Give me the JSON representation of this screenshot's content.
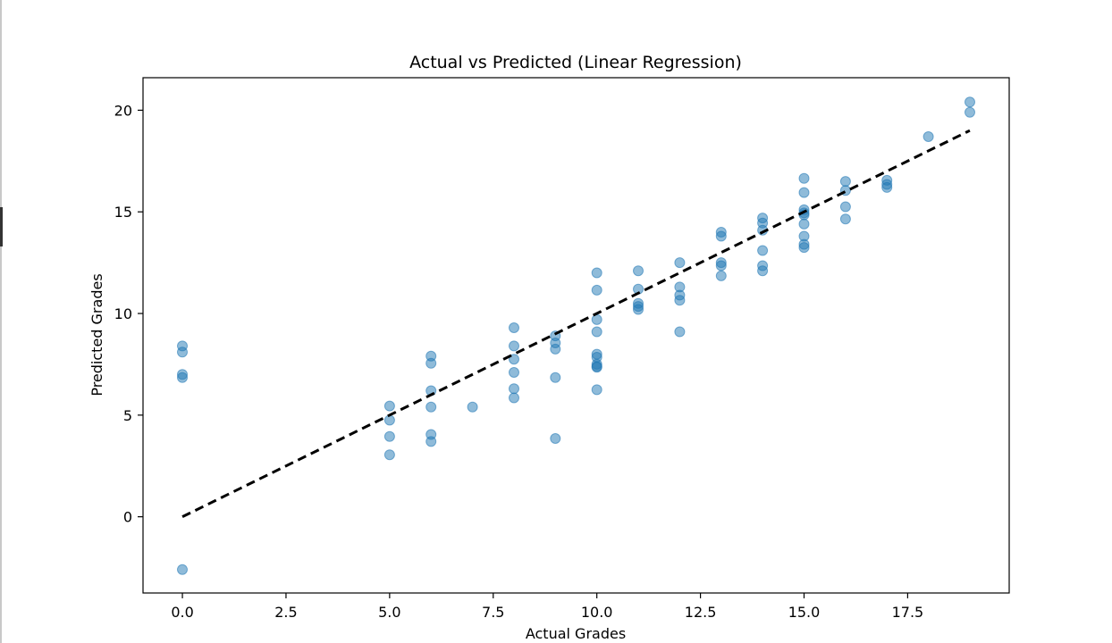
{
  "chart_data": {
    "type": "scatter",
    "title": "Actual vs Predicted (Linear Regression)",
    "xlabel": "Actual Grades",
    "ylabel": "Predicted Grades",
    "xlim": [
      -0.95,
      19.95
    ],
    "ylim": [
      -3.75,
      21.6
    ],
    "xticks": [
      0.0,
      2.5,
      5.0,
      7.5,
      10.0,
      12.5,
      15.0,
      17.5
    ],
    "xtick_labels": [
      "0.0",
      "2.5",
      "5.0",
      "7.5",
      "10.0",
      "12.5",
      "15.0",
      "17.5"
    ],
    "yticks": [
      0,
      5,
      10,
      15,
      20
    ],
    "ytick_labels": [
      "0",
      "5",
      "10",
      "15",
      "20"
    ],
    "grid": false,
    "point_color": "#1f77b4",
    "line_color": "#000000",
    "reference_line": {
      "x": [
        0,
        19
      ],
      "y": [
        0,
        19
      ],
      "style": "dashed"
    },
    "points": {
      "x": [
        0,
        0,
        0,
        0,
        0,
        5,
        5,
        5,
        5,
        6,
        6,
        6,
        6,
        6,
        6,
        7,
        8,
        8,
        8,
        8,
        8,
        8,
        9,
        9,
        9,
        9,
        9,
        10,
        10,
        10,
        10,
        10,
        10,
        10,
        10,
        10,
        10,
        11,
        11,
        11,
        11,
        11,
        12,
        12,
        12,
        12,
        12,
        13,
        13,
        13,
        13,
        13,
        14,
        14,
        14,
        14,
        14,
        14,
        15,
        15,
        15,
        15,
        15,
        15,
        15,
        15,
        15,
        16,
        16,
        16,
        16,
        17,
        17,
        17,
        18,
        19,
        19
      ],
      "y": [
        8.4,
        8.1,
        7.0,
        6.85,
        -2.6,
        5.45,
        4.75,
        3.95,
        3.05,
        7.9,
        7.55,
        6.2,
        5.4,
        4.05,
        3.7,
        5.4,
        9.3,
        8.4,
        7.75,
        7.1,
        6.3,
        5.85,
        8.9,
        8.55,
        8.25,
        6.85,
        3.85,
        12.0,
        11.15,
        9.7,
        9.1,
        8.0,
        7.85,
        7.5,
        7.4,
        7.35,
        6.25,
        12.1,
        11.2,
        10.5,
        10.35,
        10.2,
        12.5,
        11.3,
        10.9,
        10.65,
        9.1,
        14.0,
        13.8,
        12.5,
        12.35,
        11.85,
        14.7,
        14.45,
        14.1,
        13.1,
        12.35,
        12.1,
        16.65,
        15.95,
        15.1,
        14.95,
        14.85,
        14.4,
        13.8,
        13.4,
        13.25,
        16.5,
        16.05,
        15.25,
        14.65,
        16.55,
        16.35,
        16.2,
        18.7,
        20.4,
        19.9
      ]
    }
  }
}
